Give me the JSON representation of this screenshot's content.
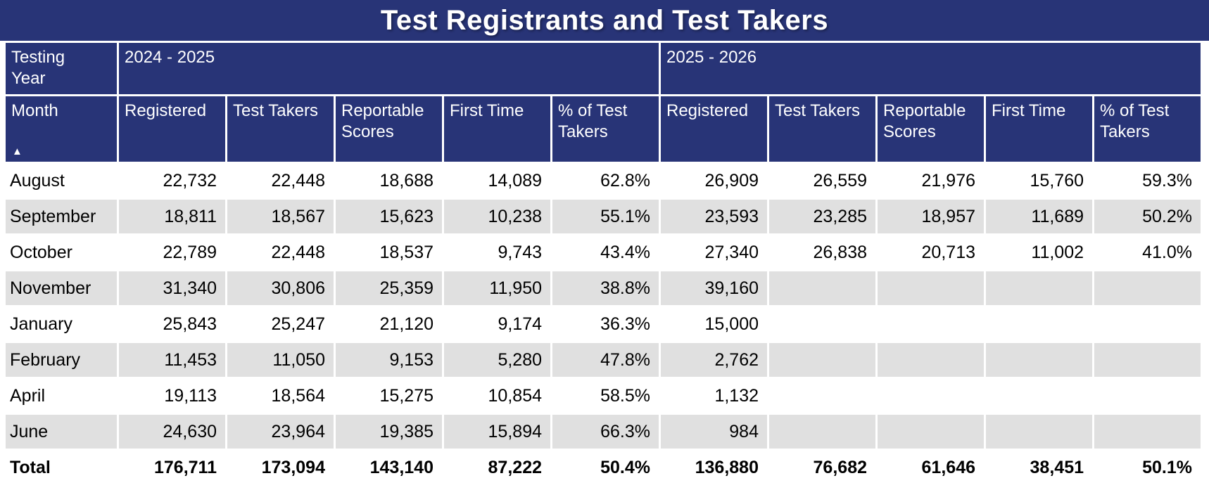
{
  "colors": {
    "header_navy": "#283477",
    "stripe_gray": "#E0E0E0",
    "row_white": "#FFFFFF",
    "header_text": "#FFFFFF",
    "body_text": "#000000"
  },
  "icons": {
    "sort_ascending_icon": "▲"
  },
  "chart_data": {
    "type": "table",
    "title": "Test Registrants and Test Takers",
    "corner_label": "Testing Year",
    "year_groups": [
      "2024 - 2025",
      "2025 - 2026"
    ],
    "month_label": "Month",
    "sub_columns": [
      "Registered",
      "Test Takers",
      "Reportable Scores",
      "First Time",
      "% of Test Takers"
    ],
    "rows": [
      {
        "month": "August",
        "y2024_2025": [
          "22,732",
          "22,448",
          "18,688",
          "14,089",
          "62.8%"
        ],
        "y2025_2026": [
          "26,909",
          "26,559",
          "21,976",
          "15,760",
          "59.3%"
        ]
      },
      {
        "month": "September",
        "y2024_2025": [
          "18,811",
          "18,567",
          "15,623",
          "10,238",
          "55.1%"
        ],
        "y2025_2026": [
          "23,593",
          "23,285",
          "18,957",
          "11,689",
          "50.2%"
        ]
      },
      {
        "month": "October",
        "y2024_2025": [
          "22,789",
          "22,448",
          "18,537",
          "9,743",
          "43.4%"
        ],
        "y2025_2026": [
          "27,340",
          "26,838",
          "20,713",
          "11,002",
          "41.0%"
        ]
      },
      {
        "month": "November",
        "y2024_2025": [
          "31,340",
          "30,806",
          "25,359",
          "11,950",
          "38.8%"
        ],
        "y2025_2026": [
          "39,160",
          "",
          "",
          "",
          ""
        ]
      },
      {
        "month": "January",
        "y2024_2025": [
          "25,843",
          "25,247",
          "21,120",
          "9,174",
          "36.3%"
        ],
        "y2025_2026": [
          "15,000",
          "",
          "",
          "",
          ""
        ]
      },
      {
        "month": "February",
        "y2024_2025": [
          "11,453",
          "11,050",
          "9,153",
          "5,280",
          "47.8%"
        ],
        "y2025_2026": [
          "2,762",
          "",
          "",
          "",
          ""
        ]
      },
      {
        "month": "April",
        "y2024_2025": [
          "19,113",
          "18,564",
          "15,275",
          "10,854",
          "58.5%"
        ],
        "y2025_2026": [
          "1,132",
          "",
          "",
          "",
          ""
        ]
      },
      {
        "month": "June",
        "y2024_2025": [
          "24,630",
          "23,964",
          "19,385",
          "15,894",
          "66.3%"
        ],
        "y2025_2026": [
          "984",
          "",
          "",
          "",
          ""
        ]
      }
    ],
    "total_row": {
      "month": "Total",
      "y2024_2025": [
        "176,711",
        "173,094",
        "143,140",
        "87,222",
        "50.4%"
      ],
      "y2025_2026": [
        "136,880",
        "76,682",
        "61,646",
        "38,451",
        "50.1%"
      ]
    }
  }
}
